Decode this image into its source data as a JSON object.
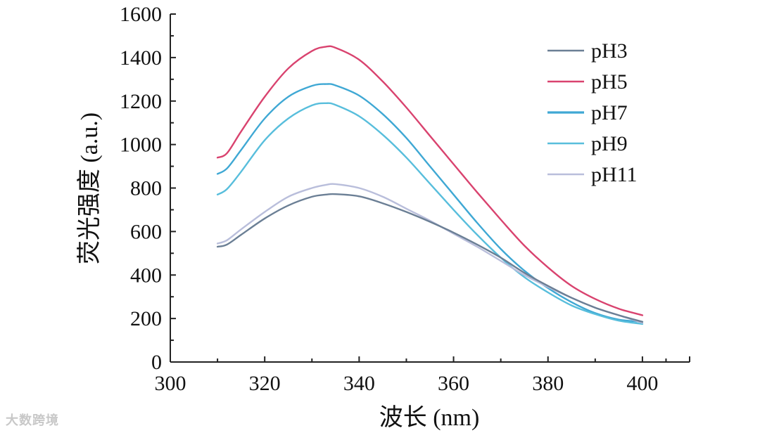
{
  "chart_data": {
    "type": "line",
    "title": "",
    "xlabel": "波长 (nm)",
    "ylabel": "荧光强度 (a.u.)",
    "xlim": [
      300,
      410
    ],
    "ylim": [
      0,
      1600
    ],
    "xticks": [
      300,
      320,
      340,
      360,
      380,
      400
    ],
    "yticks": [
      0,
      200,
      400,
      600,
      800,
      1000,
      1200,
      1400,
      1600
    ],
    "grid": false,
    "legend_position": "top-right",
    "x": [
      310,
      312,
      315,
      320,
      325,
      330,
      333,
      335,
      340,
      345,
      350,
      355,
      360,
      365,
      370,
      375,
      380,
      385,
      390,
      395,
      400
    ],
    "series": [
      {
        "name": "pH3",
        "color": "#6b7f95",
        "values": [
          530,
          540,
          585,
          660,
          720,
          760,
          770,
          772,
          762,
          730,
          690,
          645,
          595,
          540,
          480,
          410,
          350,
          295,
          250,
          215,
          185
        ]
      },
      {
        "name": "pH5",
        "color": "#d9436f",
        "values": [
          940,
          960,
          1060,
          1220,
          1350,
          1430,
          1450,
          1445,
          1390,
          1290,
          1170,
          1040,
          910,
          780,
          655,
          535,
          435,
          350,
          290,
          245,
          215
        ]
      },
      {
        "name": "pH7",
        "color": "#3fa8d4",
        "values": [
          865,
          890,
          975,
          1120,
          1220,
          1270,
          1278,
          1272,
          1225,
          1140,
          1030,
          900,
          770,
          640,
          520,
          420,
          340,
          275,
          225,
          195,
          185
        ]
      },
      {
        "name": "pH9",
        "color": "#58bedc",
        "values": [
          770,
          795,
          875,
          1020,
          1120,
          1180,
          1190,
          1182,
          1130,
          1045,
          940,
          820,
          700,
          585,
          480,
          390,
          320,
          260,
          220,
          190,
          175
        ]
      },
      {
        "name": "pH11",
        "color": "#b9bedb",
        "values": [
          545,
          560,
          610,
          690,
          760,
          800,
          815,
          818,
          800,
          760,
          705,
          650,
          590,
          530,
          465,
          400,
          345,
          295,
          250,
          215,
          180
        ]
      }
    ]
  },
  "watermark": "大数跨境"
}
